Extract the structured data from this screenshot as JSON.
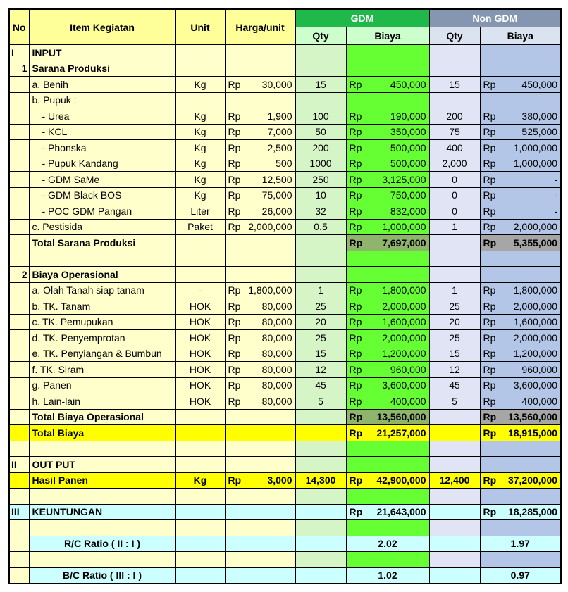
{
  "header": {
    "no": "No",
    "item": "Item Kegiatan",
    "unit": "Unit",
    "price": "Harga/unit",
    "gdm": {
      "title": "GDM",
      "qty": "Qty",
      "cost": "Biaya"
    },
    "non_gdm": {
      "title": "Non GDM",
      "qty": "Qty",
      "cost": "Biaya"
    }
  },
  "rows": [
    [
      "I",
      "INPUT",
      null,
      null,
      null,
      null,
      null,
      null
    ],
    [
      "1",
      "Sarana Produksi",
      null,
      null,
      null,
      null,
      null,
      null
    ],
    [
      null,
      "a. Benih",
      "Kg",
      {
        "cur": "Rp",
        "amount": "30,000"
      },
      "15",
      {
        "cur": "Rp",
        "amount": "450,000"
      },
      "15",
      {
        "cur": "Rp",
        "amount": "450,000"
      }
    ],
    [
      null,
      "b. Pupuk :",
      null,
      null,
      null,
      null,
      null,
      null
    ],
    [
      null,
      "- Urea",
      "Kg",
      {
        "cur": "Rp",
        "amount": "1,900"
      },
      "100",
      {
        "cur": "Rp",
        "amount": "190,000"
      },
      "200",
      {
        "cur": "Rp",
        "amount": "380,000"
      }
    ],
    [
      null,
      "- KCL",
      "Kg",
      {
        "cur": "Rp",
        "amount": "7,000"
      },
      "50",
      {
        "cur": "Rp",
        "amount": "350,000"
      },
      "75",
      {
        "cur": "Rp",
        "amount": "525,000"
      }
    ],
    [
      null,
      "- Phonska",
      "Kg",
      {
        "cur": "Rp",
        "amount": "2,500"
      },
      "200",
      {
        "cur": "Rp",
        "amount": "500,000"
      },
      "400",
      {
        "cur": "Rp",
        "amount": "1,000,000"
      }
    ],
    [
      null,
      "- Pupuk Kandang",
      "Kg",
      {
        "cur": "Rp",
        "amount": "500"
      },
      "1000",
      {
        "cur": "Rp",
        "amount": "500,000"
      },
      "2,000",
      {
        "cur": "Rp",
        "amount": "1,000,000"
      }
    ],
    [
      null,
      "- GDM SaMe",
      "Kg",
      {
        "cur": "Rp",
        "amount": "12,500"
      },
      "250",
      {
        "cur": "Rp",
        "amount": "3,125,000"
      },
      "0",
      {
        "cur": "Rp",
        "amount": "-"
      }
    ],
    [
      null,
      "- GDM Black BOS",
      "Kg",
      {
        "cur": "Rp",
        "amount": "75,000"
      },
      "10",
      {
        "cur": "Rp",
        "amount": "750,000"
      },
      "0",
      {
        "cur": "Rp",
        "amount": "-"
      }
    ],
    [
      null,
      "- POC GDM Pangan",
      "Liter",
      {
        "cur": "Rp",
        "amount": "26,000"
      },
      "32",
      {
        "cur": "Rp",
        "amount": "832,000"
      },
      "0",
      {
        "cur": "Rp",
        "amount": "-"
      }
    ],
    [
      null,
      "c. Pestisida",
      "Paket",
      {
        "cur": "Rp",
        "amount": "2,000,000"
      },
      "0.5",
      {
        "cur": "Rp",
        "amount": "1,000,000"
      },
      "1",
      {
        "cur": "Rp",
        "amount": "2,000,000"
      }
    ],
    [
      null,
      "Total Sarana Produksi",
      null,
      null,
      null,
      {
        "cur": "Rp",
        "amount": "7,697,000"
      },
      null,
      {
        "cur": "Rp",
        "amount": "5,355,000"
      }
    ],
    [
      null,
      null,
      null,
      null,
      null,
      null,
      null,
      null
    ],
    [
      "2",
      "Biaya Operasional",
      null,
      null,
      null,
      null,
      null,
      null
    ],
    [
      null,
      "a. Olah Tanah siap tanam",
      "-",
      {
        "cur": "Rp",
        "amount": "1,800,000"
      },
      "1",
      {
        "cur": "Rp",
        "amount": "1,800,000"
      },
      "1",
      {
        "cur": "Rp",
        "amount": "1,800,000"
      }
    ],
    [
      null,
      "b. TK. Tanam",
      "HOK",
      {
        "cur": "Rp",
        "amount": "80,000"
      },
      "25",
      {
        "cur": "Rp",
        "amount": "2,000,000"
      },
      "25",
      {
        "cur": "Rp",
        "amount": "2,000,000"
      }
    ],
    [
      null,
      "c. TK. Pemupukan",
      "HOK",
      {
        "cur": "Rp",
        "amount": "80,000"
      },
      "20",
      {
        "cur": "Rp",
        "amount": "1,600,000"
      },
      "20",
      {
        "cur": "Rp",
        "amount": "1,600,000"
      }
    ],
    [
      null,
      "d. TK. Penyemprotan",
      "HOK",
      {
        "cur": "Rp",
        "amount": "80,000"
      },
      "25",
      {
        "cur": "Rp",
        "amount": "2,000,000"
      },
      "25",
      {
        "cur": "Rp",
        "amount": "2,000,000"
      }
    ],
    [
      null,
      "e. TK. Penyiangan & Bumbun",
      "HOK",
      {
        "cur": "Rp",
        "amount": "80,000"
      },
      "15",
      {
        "cur": "Rp",
        "amount": "1,200,000"
      },
      "15",
      {
        "cur": "Rp",
        "amount": "1,200,000"
      }
    ],
    [
      null,
      "f. TK. Siram",
      "HOK",
      {
        "cur": "Rp",
        "amount": "80,000"
      },
      "12",
      {
        "cur": "Rp",
        "amount": "960,000"
      },
      "12",
      {
        "cur": "Rp",
        "amount": "960,000"
      }
    ],
    [
      null,
      "g. Panen",
      "HOK",
      {
        "cur": "Rp",
        "amount": "80,000"
      },
      "45",
      {
        "cur": "Rp",
        "amount": "3,600,000"
      },
      "45",
      {
        "cur": "Rp",
        "amount": "3,600,000"
      }
    ],
    [
      null,
      "h. Lain-lain",
      "HOK",
      {
        "cur": "Rp",
        "amount": "80,000"
      },
      "5",
      {
        "cur": "Rp",
        "amount": "400,000"
      },
      "5",
      {
        "cur": "Rp",
        "amount": "400,000"
      }
    ],
    [
      null,
      "Total Biaya Operasional",
      null,
      null,
      null,
      {
        "cur": "Rp",
        "amount": "13,560,000"
      },
      null,
      {
        "cur": "Rp",
        "amount": "13,560,000"
      }
    ],
    [
      null,
      "Total Biaya",
      null,
      null,
      null,
      {
        "cur": "Rp",
        "amount": "21,257,000"
      },
      null,
      {
        "cur": "Rp",
        "amount": "18,915,000"
      }
    ],
    [
      null,
      null,
      null,
      null,
      null,
      null,
      null,
      null
    ],
    [
      "II",
      "OUT PUT",
      null,
      null,
      null,
      null,
      null,
      null
    ],
    [
      null,
      "Hasil Panen",
      "Kg",
      {
        "cur": "Rp",
        "amount": "3,000"
      },
      "14,300",
      {
        "cur": "Rp",
        "amount": "42,900,000"
      },
      "12,400",
      {
        "cur": "Rp",
        "amount": "37,200,000"
      }
    ],
    [
      null,
      null,
      null,
      null,
      null,
      null,
      null,
      null
    ],
    [
      "III",
      "KEUNTUNGAN",
      null,
      null,
      null,
      {
        "cur": "Rp",
        "amount": "21,643,000"
      },
      null,
      {
        "cur": "Rp",
        "amount": "18,285,000"
      }
    ],
    [
      null,
      null,
      null,
      null,
      null,
      null,
      null,
      null
    ],
    [
      null,
      "R/C Ratio  ( II : I )",
      null,
      null,
      null,
      "2.02",
      null,
      "1.97"
    ],
    [
      null,
      null,
      null,
      null,
      null,
      null,
      null,
      null
    ],
    [
      null,
      "B/C Ratio  ( III : I )",
      null,
      null,
      null,
      "1.02",
      null,
      "0.97"
    ]
  ]
}
